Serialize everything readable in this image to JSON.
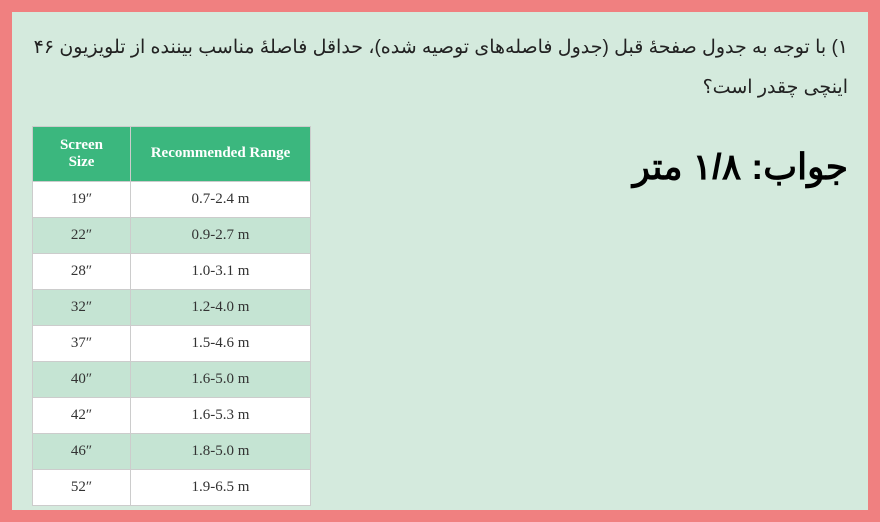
{
  "question_text": "۱) با توجه به جدول صفحهٔ قبل (جدول فاصله‌های توصیه شده)، حداقل فاصلهٔ مناسب بیننده از تلویزیون ۴۶ اینچی چقدر است؟",
  "answer_text": "جواب: ۱/۸ متر",
  "table": {
    "header_size": "Screen Size",
    "header_range": "Recommended Range",
    "rows": [
      {
        "size": "19″",
        "range": "0.7-2.4 m",
        "alt": false
      },
      {
        "size": "22″",
        "range": "0.9-2.7 m",
        "alt": true
      },
      {
        "size": "28″",
        "range": "1.0-3.1 m",
        "alt": false
      },
      {
        "size": "32″",
        "range": "1.2-4.0 m",
        "alt": true
      },
      {
        "size": "37″",
        "range": "1.5-4.6 m",
        "alt": false
      },
      {
        "size": "40″",
        "range": "1.6-5.0 m",
        "alt": true
      },
      {
        "size": "42″",
        "range": "1.6-5.3 m",
        "alt": false
      },
      {
        "size": "46″",
        "range": "1.8-5.0 m",
        "alt": true
      },
      {
        "size": "52″",
        "range": "1.9-6.5 m",
        "alt": false
      }
    ]
  },
  "colors": {
    "outer_bg": "#f08080",
    "page_bg": "#d4eadd",
    "header_bg": "#3bb77e",
    "header_text": "#ffffff",
    "cell_bg": "#ffffff",
    "alt_cell_bg": "#c5e4d3",
    "border": "#cccccc",
    "text": "#222222"
  }
}
